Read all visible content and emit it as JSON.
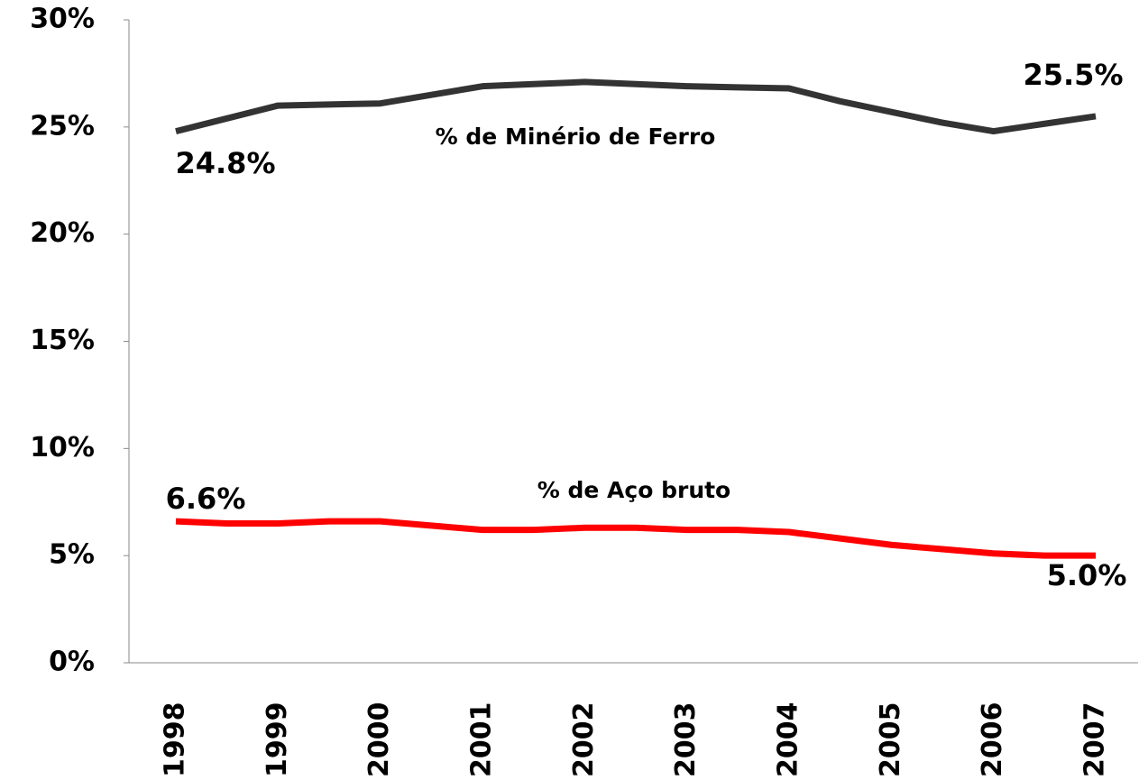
{
  "chart_data": {
    "type": "line",
    "categories": [
      "1998",
      null,
      "1999",
      null,
      "2000",
      null,
      "2001",
      null,
      "2002",
      null,
      "2003",
      null,
      "2004",
      null,
      "2005",
      null,
      "2006",
      null,
      "2007"
    ],
    "series": [
      {
        "name": "% de Minério de Ferro",
        "color": "#333333",
        "values": [
          24.8,
          25.4,
          26.0,
          26.05,
          26.1,
          26.5,
          26.9,
          27.0,
          27.1,
          27.0,
          26.9,
          26.85,
          26.8,
          26.2,
          25.7,
          25.2,
          24.8,
          25.15,
          25.5
        ],
        "value_labels": [
          "24.8%",
          null,
          null,
          null,
          null,
          null,
          null,
          null,
          null,
          null,
          null,
          null,
          null,
          null,
          null,
          null,
          null,
          null,
          "25.5%"
        ]
      },
      {
        "name": "% de Aço bruto",
        "color": "#ff0000",
        "values": [
          6.6,
          6.5,
          6.5,
          6.6,
          6.6,
          6.4,
          6.2,
          6.2,
          6.3,
          6.3,
          6.2,
          6.2,
          6.1,
          5.8,
          5.5,
          5.3,
          5.1,
          5.0,
          5.0
        ],
        "value_labels": [
          "6.6%",
          null,
          null,
          null,
          null,
          null,
          null,
          null,
          null,
          null,
          null,
          null,
          null,
          null,
          null,
          null,
          null,
          null,
          "5.0%"
        ]
      }
    ],
    "ylim": [
      0,
      30
    ],
    "yticks": [
      {
        "value": 0,
        "label": "0%"
      },
      {
        "value": 5,
        "label": "5%"
      },
      {
        "value": 10,
        "label": "10%"
      },
      {
        "value": 15,
        "label": "15%"
      },
      {
        "value": 20,
        "label": "20%"
      },
      {
        "value": 25,
        "label": "25%"
      },
      {
        "value": 30,
        "label": "30%"
      }
    ],
    "grid": false
  }
}
